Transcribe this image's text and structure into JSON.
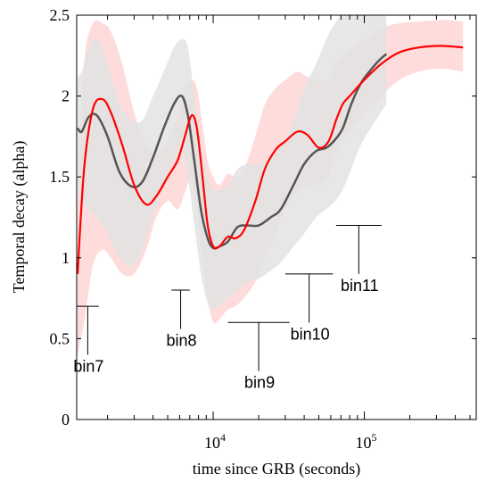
{
  "chart_data": {
    "type": "line",
    "title": "",
    "xlabel": "time since GRB (seconds)",
    "ylabel": "Temporal decay (alpha)",
    "xscale": "log",
    "xlim": [
      1250,
      550000
    ],
    "ylim": [
      0,
      2.5
    ],
    "grid": false,
    "x_ticks": [
      {
        "value": 10000,
        "base": "10",
        "exp": "4"
      },
      {
        "value": 100000,
        "base": "10",
        "exp": "5"
      }
    ],
    "y_ticks": [
      {
        "value": 0,
        "label": "0"
      },
      {
        "value": 0.5,
        "label": "0.5"
      },
      {
        "value": 1,
        "label": "1"
      },
      {
        "value": 1.5,
        "label": "1.5"
      },
      {
        "value": 2,
        "label": "2"
      },
      {
        "value": 2.5,
        "label": "2.5"
      }
    ],
    "series": [
      {
        "color": "#ff0000",
        "band_color": "#ffdcdc",
        "x": [
          1250,
          1400,
          1600,
          1850,
          2100,
          2500,
          3000,
          3600,
          4200,
          5000,
          5800,
          6500,
          7200,
          7800,
          8500,
          9200,
          10000,
          11000,
          12500,
          14000,
          16000,
          19000,
          22000,
          26000,
          30000,
          36000,
          42000,
          50000,
          58000,
          65000,
          72000,
          80000,
          100000,
          130000,
          170000,
          230000,
          320000,
          450000
        ],
        "values": [
          0.9,
          1.55,
          1.92,
          1.98,
          1.9,
          1.7,
          1.45,
          1.33,
          1.38,
          1.5,
          1.6,
          1.75,
          1.88,
          1.8,
          1.5,
          1.2,
          1.07,
          1.07,
          1.13,
          1.12,
          1.17,
          1.35,
          1.55,
          1.67,
          1.72,
          1.78,
          1.76,
          1.68,
          1.72,
          1.85,
          1.95,
          2.0,
          2.1,
          2.2,
          2.27,
          2.3,
          2.31,
          2.3
        ],
        "band_low": [
          0.4,
          0.6,
          0.95,
          1.05,
          1.0,
          0.9,
          0.9,
          1.05,
          1.25,
          1.35,
          1.3,
          1.4,
          1.5,
          1.3,
          1.0,
          0.75,
          0.6,
          0.62,
          0.68,
          0.7,
          0.75,
          0.85,
          1.0,
          1.15,
          1.3,
          1.4,
          1.45,
          1.45,
          1.5,
          1.65,
          1.72,
          1.78,
          1.9,
          2.0,
          2.1,
          2.15,
          2.17,
          2.15
        ],
        "band_high": [
          1.35,
          2.2,
          2.45,
          2.45,
          2.4,
          2.2,
          1.9,
          1.7,
          1.65,
          1.72,
          1.88,
          2.05,
          2.1,
          2.05,
          1.82,
          1.6,
          1.5,
          1.45,
          1.52,
          1.5,
          1.55,
          1.75,
          1.95,
          2.05,
          2.1,
          2.15,
          2.12,
          2.1,
          2.1,
          2.2,
          2.25,
          2.28,
          2.35,
          2.42,
          2.45,
          2.46,
          2.47,
          2.46
        ]
      },
      {
        "color": "#555555",
        "band_color": "#e3e3e3",
        "x": [
          1250,
          1350,
          1500,
          1700,
          2000,
          2400,
          2900,
          3400,
          4000,
          4700,
          5500,
          6200,
          6800,
          7500,
          8300,
          9200,
          10000,
          11000,
          12500,
          14500,
          17000,
          20000,
          24000,
          28000,
          34000,
          40000,
          48000,
          56000,
          64000,
          72000,
          82000,
          95000,
          110000,
          125000,
          140000
        ],
        "values": [
          1.8,
          1.78,
          1.87,
          1.88,
          1.75,
          1.53,
          1.44,
          1.47,
          1.62,
          1.8,
          1.95,
          2.0,
          1.88,
          1.6,
          1.3,
          1.12,
          1.06,
          1.07,
          1.1,
          1.19,
          1.2,
          1.2,
          1.25,
          1.3,
          1.45,
          1.58,
          1.66,
          1.68,
          1.73,
          1.8,
          1.95,
          2.08,
          2.16,
          2.22,
          2.26
        ],
        "band_low": [
          1.45,
          1.35,
          1.3,
          1.25,
          1.15,
          1.0,
          0.95,
          1.05,
          1.25,
          1.45,
          1.6,
          1.65,
          1.5,
          1.2,
          0.9,
          0.72,
          0.68,
          0.7,
          0.75,
          0.8,
          0.85,
          0.87,
          0.92,
          0.97,
          1.07,
          1.15,
          1.25,
          1.3,
          1.35,
          1.42,
          1.55,
          1.7,
          1.8,
          1.88,
          1.95
        ],
        "band_high": [
          2.12,
          2.15,
          2.3,
          2.35,
          2.2,
          1.95,
          1.85,
          1.85,
          2.0,
          2.15,
          2.3,
          2.35,
          2.3,
          2.0,
          1.7,
          1.5,
          1.42,
          1.42,
          1.45,
          1.55,
          1.58,
          1.58,
          1.62,
          1.68,
          1.85,
          2.05,
          2.2,
          2.35,
          2.45,
          2.5,
          2.5,
          2.5,
          2.5,
          2.5,
          2.5
        ]
      }
    ],
    "annotations": [
      {
        "label": "bin7",
        "x_start": 1250,
        "x_end": 1750,
        "y": 0.7,
        "y_bottom": 0.4
      },
      {
        "label": "bin8",
        "x_start": 5300,
        "x_end": 7000,
        "y": 0.8,
        "y_bottom": 0.56
      },
      {
        "label": "bin9",
        "x_start": 12500,
        "x_end": 32000,
        "y": 0.6,
        "y_bottom": 0.3
      },
      {
        "label": "bin10",
        "x_start": 30000,
        "x_end": 62000,
        "y": 0.9,
        "y_bottom": 0.6
      },
      {
        "label": "bin11",
        "x_start": 65000,
        "x_end": 130000,
        "y": 1.2,
        "y_bottom": 0.9
      }
    ]
  }
}
